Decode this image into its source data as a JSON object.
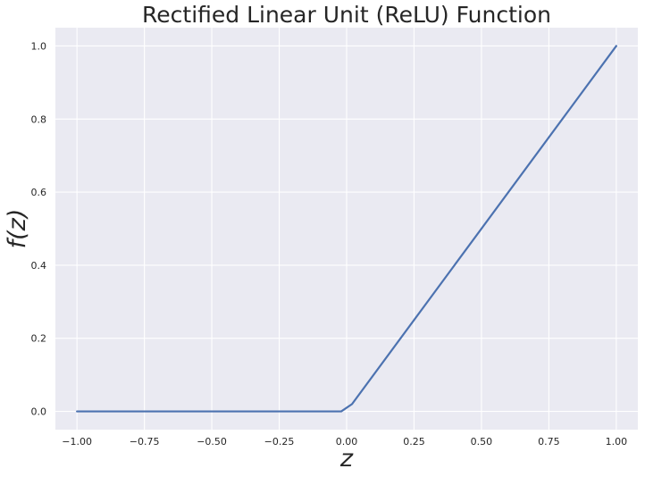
{
  "chart_data": {
    "type": "line",
    "title": "Rectified Linear Unit (ReLU) Function",
    "xlabel": "z",
    "ylabel": "f(z)",
    "xlim": [
      -1.08,
      1.08
    ],
    "ylim": [
      -0.05,
      1.05
    ],
    "xticks": [
      -1.0,
      -0.75,
      -0.5,
      -0.25,
      0.0,
      0.25,
      0.5,
      0.75,
      1.0
    ],
    "xtick_labels": [
      "−1.00",
      "−0.75",
      "−0.50",
      "−0.25",
      "0.00",
      "0.25",
      "0.50",
      "0.75",
      "1.00"
    ],
    "yticks": [
      0.0,
      0.2,
      0.4,
      0.6,
      0.8,
      1.0
    ],
    "ytick_labels": [
      "0.0",
      "0.2",
      "0.4",
      "0.6",
      "0.8",
      "1.0"
    ],
    "grid": true,
    "background": "#eaeaf2",
    "grid_color": "#ffffff",
    "series": [
      {
        "color": "#4c72b0",
        "x": [
          -1.0,
          -0.02,
          0.02,
          1.0
        ],
        "y": [
          0.0,
          0.0,
          0.02,
          1.0
        ]
      }
    ]
  }
}
